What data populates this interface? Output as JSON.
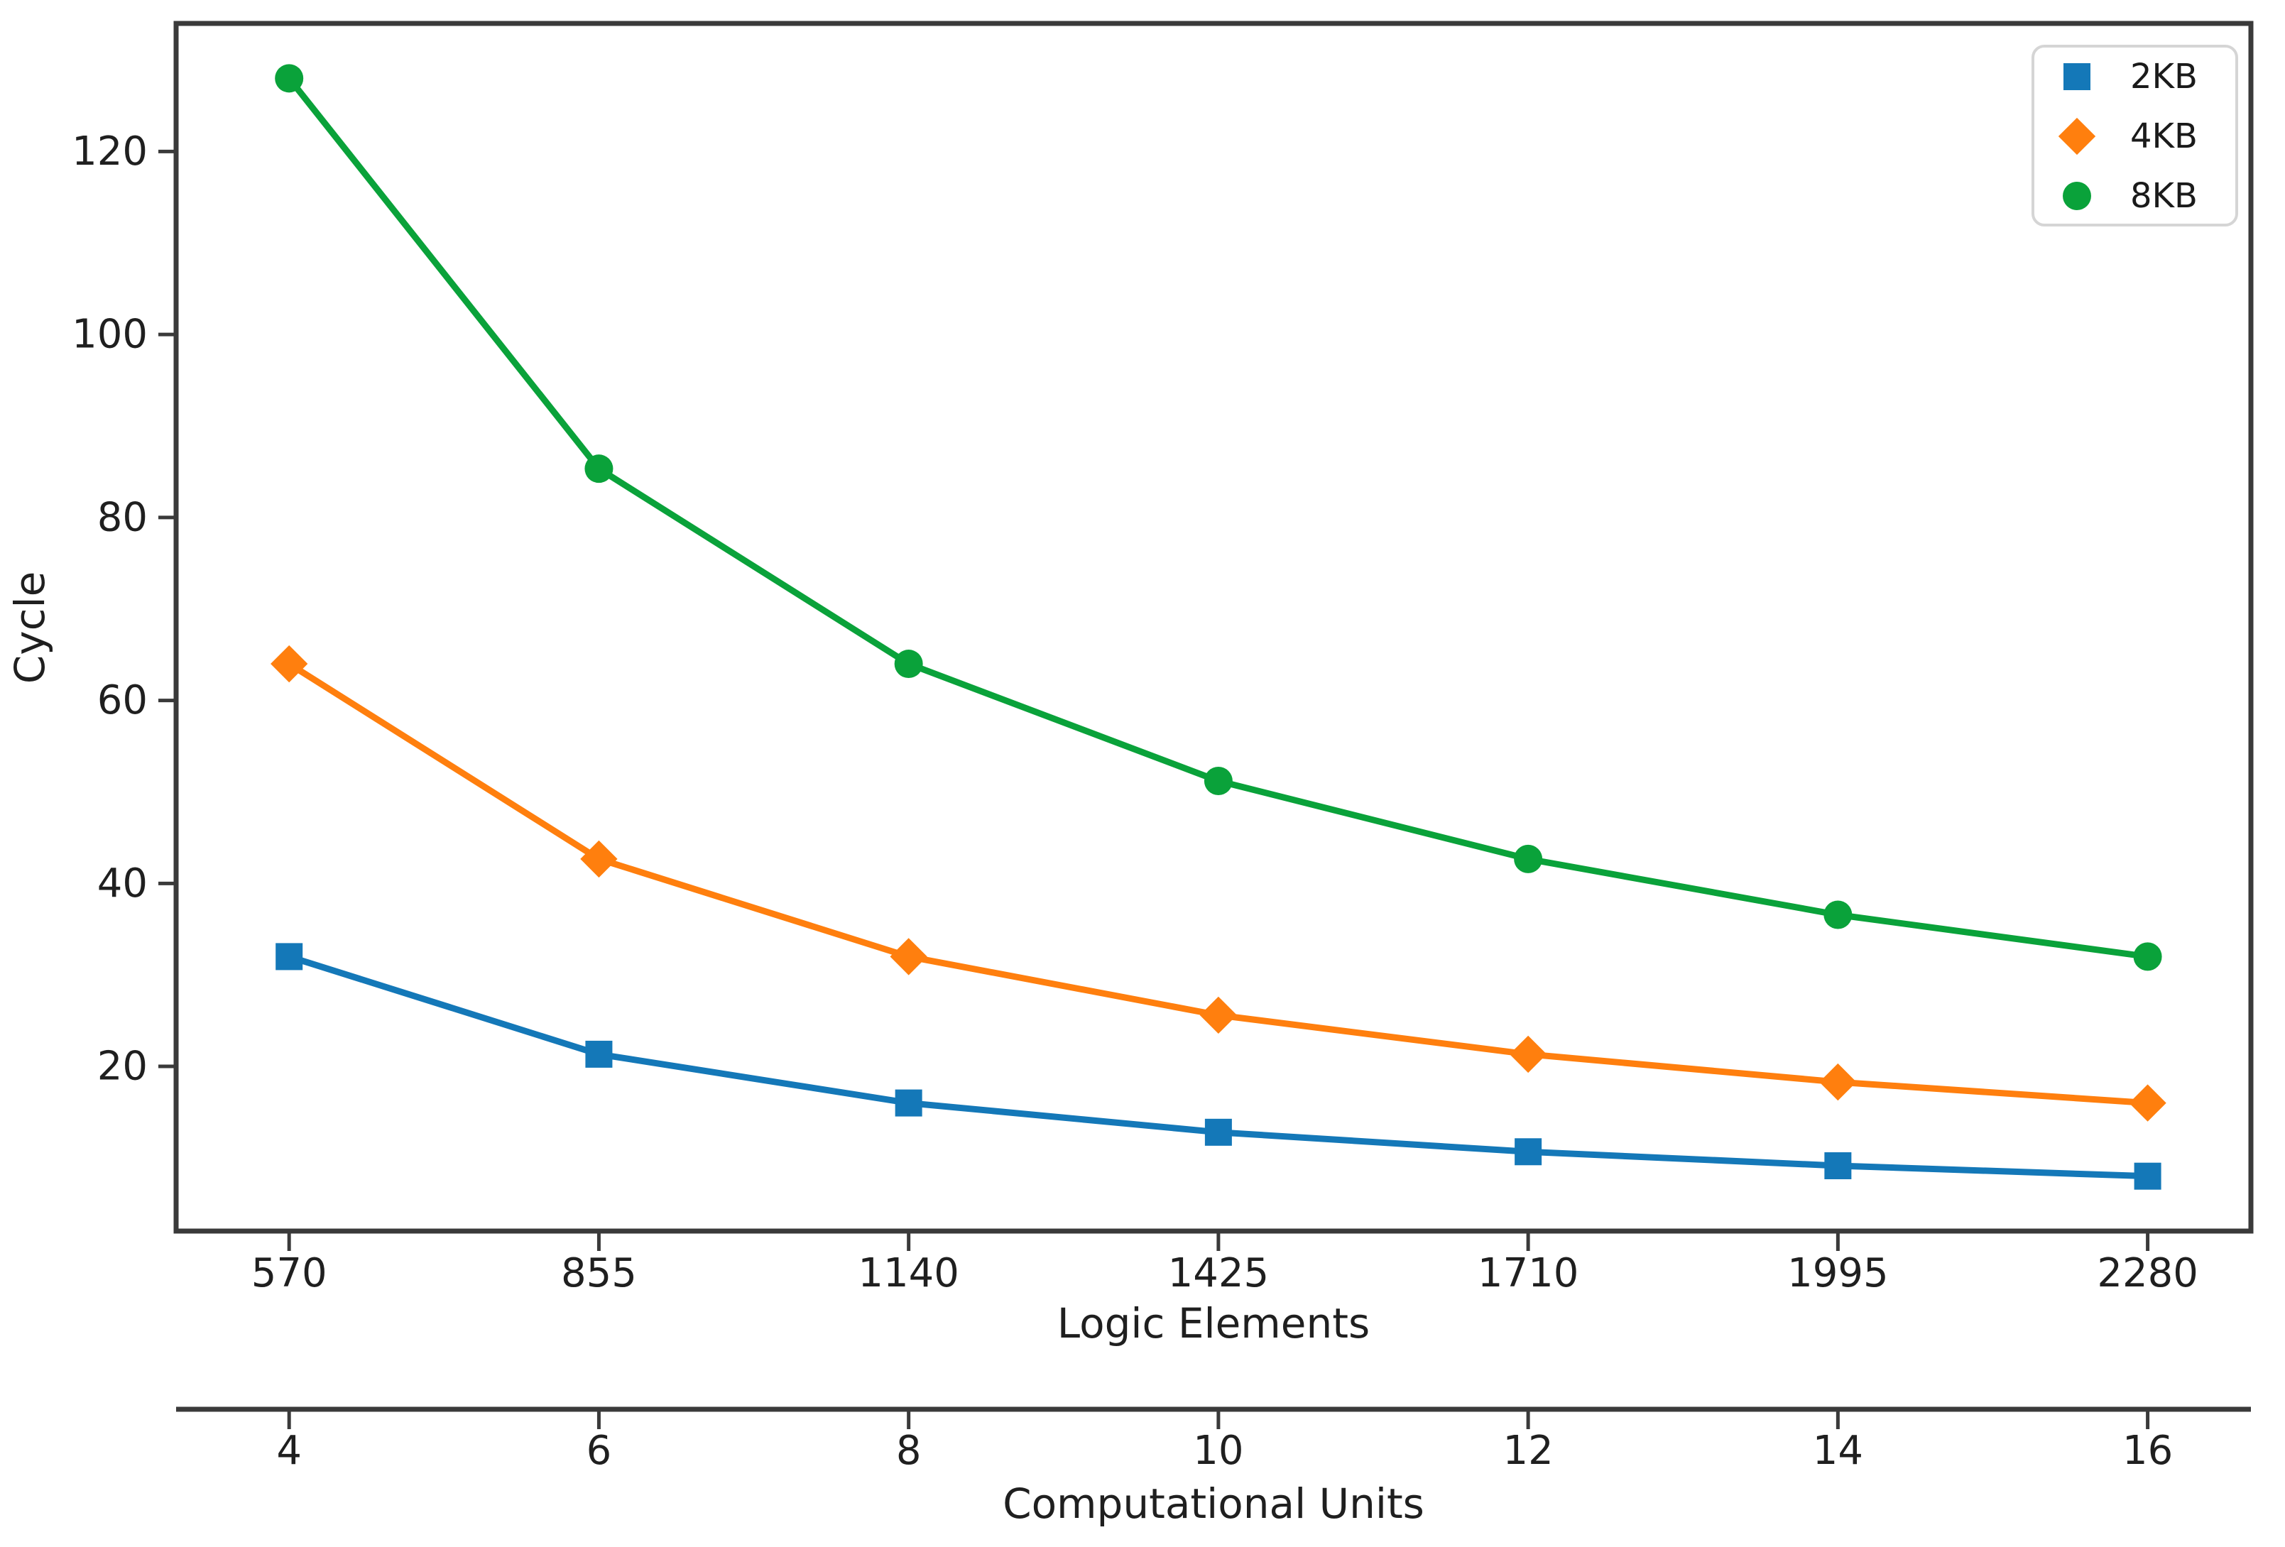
{
  "figure": {
    "background": "#ffffff",
    "axis_color": "#3a3a3a",
    "text_color": "#1f1f1f",
    "legend_border_color": "#d5d5d5"
  },
  "chart_data": {
    "type": "line",
    "title": "",
    "xlabel": "Logic Elements",
    "ylabel": "Cycle",
    "secondary_xlabel": "Computational Units",
    "x_logic_elements": [
      570,
      855,
      1140,
      1425,
      1710,
      1995,
      2280
    ],
    "x_computational_units": [
      4,
      6,
      8,
      10,
      12,
      14,
      16
    ],
    "y_ticks": [
      20,
      40,
      60,
      80,
      100,
      120
    ],
    "xlim_logic_elements": [
      466,
      2375
    ],
    "ylim": [
      2,
      134
    ],
    "grid": false,
    "legend_position": "upper right",
    "series": [
      {
        "name": "2KB",
        "marker": "square",
        "color": "#1478b8",
        "values": [
          32,
          21.33,
          16,
          12.8,
          10.67,
          9.14,
          8
        ]
      },
      {
        "name": "4KB",
        "marker": "diamond",
        "color": "#ff7f0e",
        "values": [
          64,
          42.67,
          32,
          25.6,
          21.33,
          18.29,
          16
        ]
      },
      {
        "name": "8KB",
        "marker": "circle",
        "color": "#0aa23a",
        "values": [
          128,
          85.33,
          64,
          51.2,
          42.67,
          36.57,
          32
        ]
      }
    ]
  },
  "legend": {
    "items": [
      {
        "label": "2KB"
      },
      {
        "label": "4KB"
      },
      {
        "label": "8KB"
      }
    ]
  }
}
